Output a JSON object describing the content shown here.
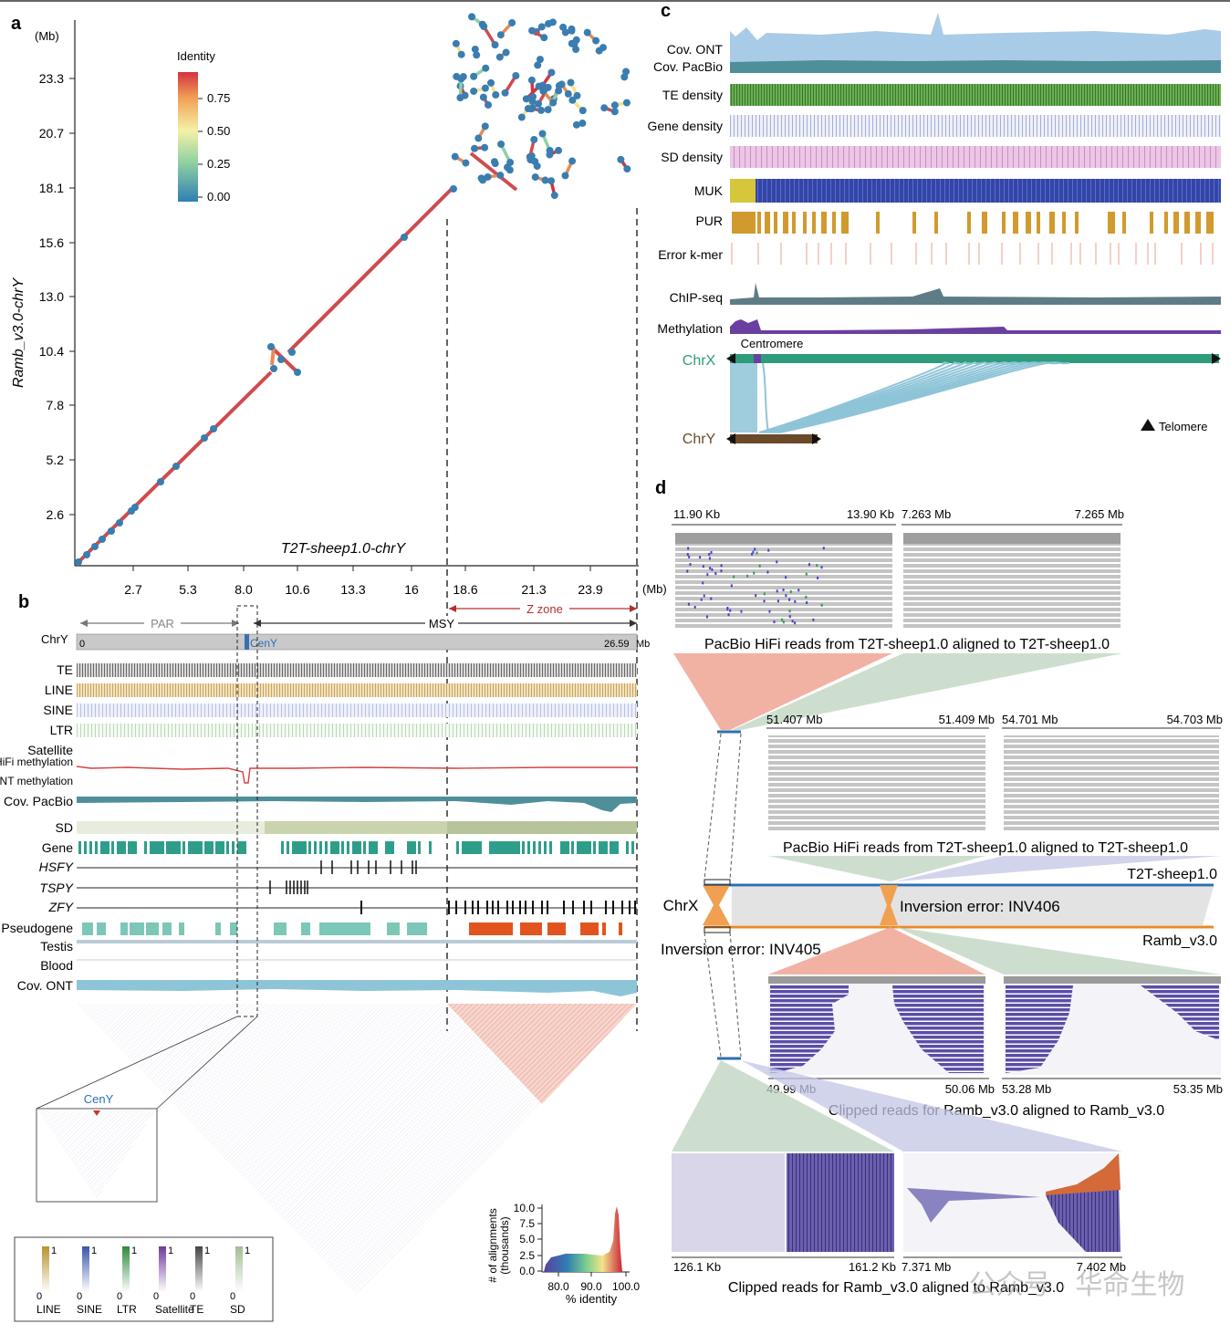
{
  "colors": {
    "diag": "#cf4b4e",
    "dot": "#3a7db0",
    "ont": "#a8cbe8",
    "pacbio": "#4e8f9a",
    "te_density": "#4f9a3a",
    "gene_density": "#9aa6cf",
    "sd_density": "#e8bfe0",
    "muk": "#3548a8",
    "pur": "#d19a2e",
    "error": "#e8a090",
    "chip": "#5e7c86",
    "meth": "#6b3fa0",
    "chrx": "#2e9c7a",
    "chry": "#6b4a2a",
    "link": "#8ec4d8",
    "zzone": "#b03030",
    "gene_b": "#2e9e8a",
    "pseudo_teal": "#7cc7b8",
    "pseudo_orange": "#e2541f",
    "hifi_meth": "#d64040",
    "salmon": "#eea494",
    "sage": "#bcd3bf",
    "lav": "#c3c6e6",
    "blue_line": "#2b6fb0",
    "orange_line": "#e88a2a",
    "read_gray": "#bdbdbd",
    "read_purple": "#5b4ea8"
  },
  "panel_a": {
    "label": "a",
    "y_unit": "(Mb)",
    "x_unit": "(Mb)",
    "ylabel": "Ramb_v3.0-chrY",
    "xlabel": "T2T-sheep1.0-chrY",
    "yticks": [
      "23.3",
      "20.7",
      "18.1",
      "15.6",
      "13.0",
      "10.4",
      "7.8",
      "5.2",
      "2.6"
    ],
    "xticks": [
      "2.7",
      "5.3",
      "8.0",
      "10.6",
      "13.3",
      "16",
      "18.6",
      "21.3",
      "23.9"
    ],
    "legend_title": "Identity",
    "legend_ticks": [
      "0.75",
      "0.50",
      "0.25",
      "0.00"
    ]
  },
  "panel_b": {
    "label": "b",
    "par": "PAR",
    "msy": "MSY",
    "zzone": "Z zone",
    "chrom": "ChrY",
    "start": "0",
    "end": "26.59",
    "end_unit": "Mb",
    "ceny": "CenY",
    "tracks": [
      "TE",
      "LINE",
      "SINE",
      "LTR",
      "Satellite",
      "HiFi methylation",
      "ONT methylation",
      "Cov. PacBio",
      "SD",
      "Gene",
      "HSFY",
      "TSPY",
      "ZFY",
      "Pseudogene",
      "Testis",
      "Blood",
      "Cov. ONT"
    ],
    "inset_label": "CenY",
    "legend": [
      "LINE",
      "SINE",
      "LTR",
      "Satellite",
      "TE",
      "SD"
    ],
    "legend_one": "1",
    "legend_zero": "0",
    "hist_ylabel": "# of alignments",
    "hist_ylabel2": "(thousands)",
    "hist_yticks": [
      "10.0",
      "7.5",
      "5.0",
      "2.5",
      "0.0"
    ],
    "hist_xticks": [
      "80.0",
      "90.0",
      "100.0"
    ],
    "hist_xlabel": "% identity"
  },
  "panel_c": {
    "label": "c",
    "tracks": [
      "Cov. ONT",
      "Cov. PacBio",
      "TE density",
      "Gene density",
      "SD density",
      "MUK",
      "PUR",
      "Error k-mer",
      "ChIP-seq",
      "Methylation"
    ],
    "centromere": "Centromere",
    "chrx": "ChrX",
    "chry": "ChrY",
    "telomere": "Telomere"
  },
  "panel_d": {
    "label": "d",
    "top_coords": [
      "11.90 Kb",
      "13.90 Kb",
      "7.263 Mb",
      "7.265 Mb"
    ],
    "top_caption": "PacBio HiFi reads from T2T-sheep1.0 aligned to T2T-sheep1.0",
    "mid_coords": [
      "51.407 Mb",
      "51.409 Mb",
      "54.701 Mb",
      "54.703 Mb"
    ],
    "mid_caption": "PacBio HiFi reads from T2T-sheep1.0 aligned to T2T-sheep1.0",
    "ref_t2t": "T2T-sheep1.0",
    "chrx": "ChrX",
    "inv406": "Inversion error: INV406",
    "ref_ramb": "Ramb_v3.0",
    "inv405": "Inversion error: INV405",
    "clip_coords": [
      "49.99 Mb",
      "50.06 Mb",
      "53.28 Mb",
      "53.35 Mb"
    ],
    "clip_caption": "Clipped reads for Ramb_v3.0 aligned to Ramb_v3.0",
    "bottom_coords": [
      "126.1 Kb",
      "161.2 Kb",
      "7.371 Mb",
      "7.402 Mb"
    ],
    "bottom_caption": "Clipped reads for Ramb_v3.0 aligned to Ramb_v3.0"
  },
  "watermark": "公众号 · 华命生物"
}
